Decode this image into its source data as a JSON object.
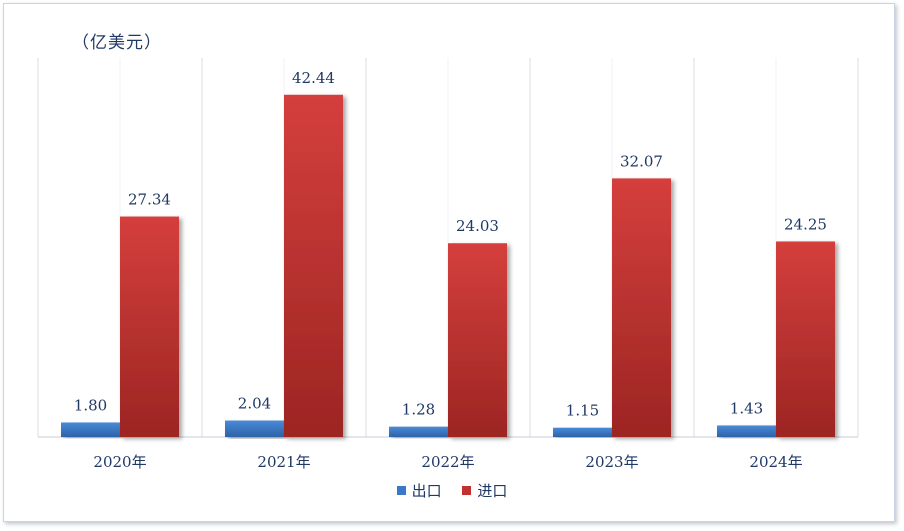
{
  "chart_data": {
    "type": "bar",
    "unit": "（亿美元）",
    "categories": [
      "2020年",
      "2021年",
      "2022年",
      "2023年",
      "2024年"
    ],
    "series": [
      {
        "name": "出口",
        "color": "#3a78c9",
        "values": [
          1.8,
          2.04,
          1.28,
          1.15,
          1.43
        ],
        "labels": [
          "1.80",
          "2.04",
          "1.28",
          "1.15",
          "1.43"
        ]
      },
      {
        "name": "进口",
        "color": "#c0312f",
        "values": [
          27.34,
          42.44,
          24.03,
          32.07,
          24.25
        ],
        "labels": [
          "27.34",
          "42.44",
          "24.03",
          "32.07",
          "24.25"
        ]
      }
    ],
    "ylim": [
      0,
      47
    ],
    "grid": "vertical category dividers",
    "legend": "bottom-center"
  }
}
